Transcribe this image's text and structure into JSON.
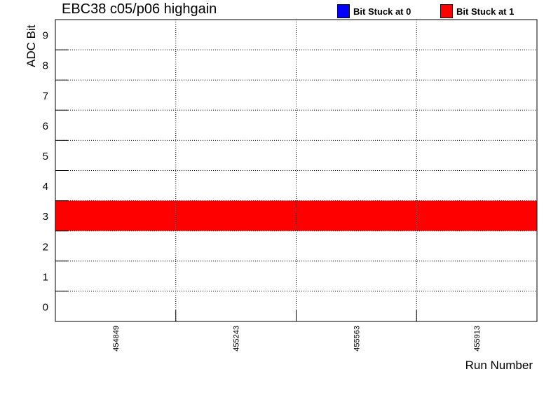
{
  "chart_data": {
    "type": "heatmap",
    "title": "EBC38 c05/p06 highgain",
    "xlabel": "Run Number",
    "ylabel": "ADC Bit",
    "categories": [
      "454849",
      "455243",
      "455563",
      "455913"
    ],
    "y_ticks": [
      "0",
      "1",
      "2",
      "3",
      "4",
      "5",
      "6",
      "7",
      "8",
      "9"
    ],
    "ylim": [
      0,
      10
    ],
    "grid": true,
    "legend_position": "top-right",
    "legend": [
      {
        "label": "Bit Stuck at 0",
        "color": "#0000ff"
      },
      {
        "label": "Bit Stuck at 1",
        "color": "#ff0000"
      }
    ],
    "cells": [
      {
        "run": "454849",
        "bit": 3,
        "status": "Bit Stuck at 1"
      },
      {
        "run": "455243",
        "bit": 3,
        "status": "Bit Stuck at 1"
      },
      {
        "run": "455563",
        "bit": 3,
        "status": "Bit Stuck at 1"
      },
      {
        "run": "455913",
        "bit": 3,
        "status": "Bit Stuck at 1"
      }
    ]
  }
}
